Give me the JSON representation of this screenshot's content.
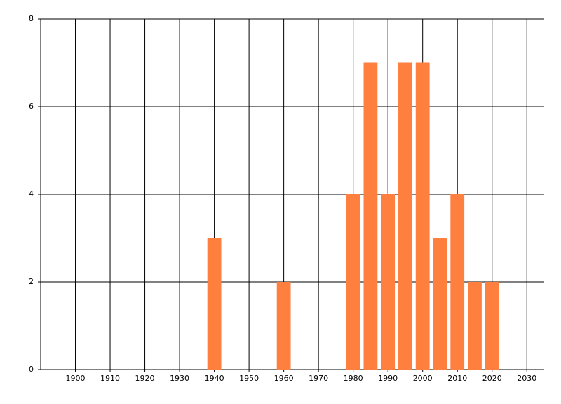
{
  "chart_data": {
    "type": "bar",
    "x": [
      1940,
      1960,
      1980,
      1985,
      1990,
      1995,
      2000,
      2005,
      2010,
      2015,
      2020
    ],
    "values": [
      3,
      2,
      4,
      7,
      4,
      7,
      7,
      3,
      4,
      2,
      2
    ],
    "color": "#ff7f3f",
    "xlim": [
      1890,
      2035
    ],
    "xticks": [
      1900,
      1910,
      1920,
      1930,
      1940,
      1950,
      1960,
      1970,
      1980,
      1990,
      2000,
      2010,
      2020,
      2030
    ],
    "ylim": [
      0,
      8
    ],
    "yticks": [
      0,
      2,
      4,
      6,
      8
    ],
    "grid": true
  }
}
